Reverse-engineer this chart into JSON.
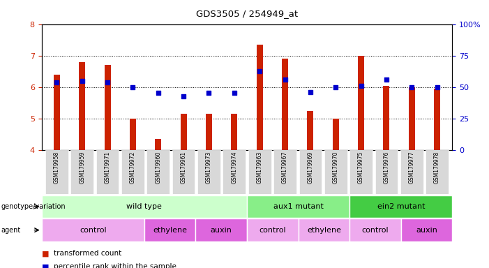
{
  "title": "GDS3505 / 254949_at",
  "samples": [
    "GSM179958",
    "GSM179959",
    "GSM179971",
    "GSM179972",
    "GSM179960",
    "GSM179961",
    "GSM179973",
    "GSM179974",
    "GSM179963",
    "GSM179967",
    "GSM179969",
    "GSM179970",
    "GSM179975",
    "GSM179976",
    "GSM179977",
    "GSM179978"
  ],
  "bar_heights": [
    6.4,
    6.8,
    6.7,
    5.0,
    4.35,
    5.15,
    5.15,
    5.15,
    7.35,
    6.9,
    5.25,
    5.0,
    7.0,
    6.05,
    6.0,
    5.95
  ],
  "blue_values": [
    6.15,
    6.2,
    6.15,
    6.0,
    5.82,
    5.7,
    5.82,
    5.82,
    6.5,
    6.25,
    5.85,
    6.0,
    6.05,
    6.25,
    6.0,
    6.0
  ],
  "ylim": [
    4.0,
    8.0
  ],
  "yticks_left": [
    4,
    5,
    6,
    7,
    8
  ],
  "yticks_right": [
    0,
    25,
    50,
    75,
    100
  ],
  "bar_color": "#cc2200",
  "dot_color": "#0000cc",
  "genotype_groups": [
    {
      "label": "wild type",
      "start": 0,
      "end": 8,
      "color": "#ccffcc"
    },
    {
      "label": "aux1 mutant",
      "start": 8,
      "end": 12,
      "color": "#88ee88"
    },
    {
      "label": "ein2 mutant",
      "start": 12,
      "end": 16,
      "color": "#44cc44"
    }
  ],
  "agent_groups": [
    {
      "label": "control",
      "start": 0,
      "end": 4,
      "color": "#eeaaee"
    },
    {
      "label": "ethylene",
      "start": 4,
      "end": 6,
      "color": "#dd66dd"
    },
    {
      "label": "auxin",
      "start": 6,
      "end": 8,
      "color": "#dd66dd"
    },
    {
      "label": "control",
      "start": 8,
      "end": 10,
      "color": "#eeaaee"
    },
    {
      "label": "ethylene",
      "start": 10,
      "end": 12,
      "color": "#eeaaee"
    },
    {
      "label": "control",
      "start": 12,
      "end": 14,
      "color": "#eeaaee"
    },
    {
      "label": "auxin",
      "start": 14,
      "end": 16,
      "color": "#dd66dd"
    }
  ],
  "legend_red": "transformed count",
  "legend_blue": "percentile rank within the sample"
}
